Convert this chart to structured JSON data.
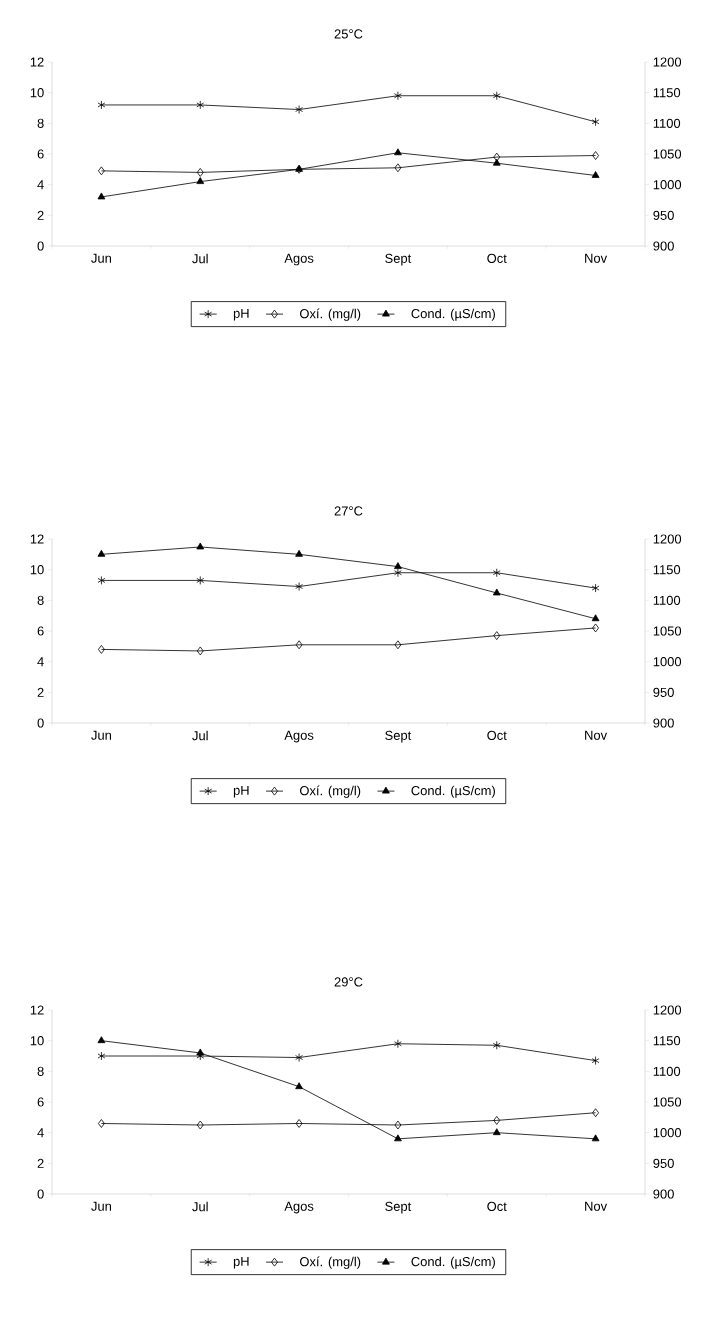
{
  "chart_data": [
    {
      "type": "line",
      "title": "25°C",
      "categories": [
        "Jun",
        "Jul",
        "Agos",
        "Sept",
        "Oct",
        "Nov"
      ],
      "ylim": [
        0,
        12
      ],
      "yticks": [
        0,
        2,
        4,
        6,
        8,
        10,
        12
      ],
      "y2lim": [
        900,
        1200
      ],
      "y2ticks": [
        900,
        950,
        1000,
        1050,
        1100,
        1150,
        1200
      ],
      "grid": false,
      "legend": "bottom",
      "series": [
        {
          "name": "pH",
          "color": "#000000",
          "marker": "cross",
          "values": [
            9.2,
            9.2,
            8.9,
            9.8,
            9.8,
            8.1
          ]
        },
        {
          "name": "Oxí. (mg/l)",
          "color": "#000000",
          "marker": "diamond",
          "values": [
            4.9,
            4.8,
            5.0,
            5.1,
            5.8,
            5.9
          ]
        },
        {
          "name": "Cond. (µS/cm)",
          "color": "#000000",
          "marker": "triangle",
          "axis": "y2",
          "values": [
            980,
            1005,
            1025,
            1052,
            1035,
            1015
          ]
        }
      ]
    },
    {
      "type": "line",
      "title": "27°C",
      "categories": [
        "Jun",
        "Jul",
        "Agos",
        "Sept",
        "Oct",
        "Nov"
      ],
      "ylim": [
        0,
        12
      ],
      "yticks": [
        0,
        2,
        4,
        6,
        8,
        10,
        12
      ],
      "y2lim": [
        900,
        1200
      ],
      "y2ticks": [
        900,
        950,
        1000,
        1050,
        1100,
        1150,
        1200
      ],
      "grid": false,
      "legend": "bottom",
      "series": [
        {
          "name": "pH",
          "color": "#000000",
          "marker": "cross",
          "values": [
            9.3,
            9.3,
            8.9,
            9.8,
            9.8,
            8.8
          ]
        },
        {
          "name": "Oxí. (mg/l)",
          "color": "#000000",
          "marker": "diamond",
          "values": [
            4.8,
            4.7,
            5.1,
            5.1,
            5.7,
            6.2
          ]
        },
        {
          "name": "Cond. (µS/cm)",
          "color": "#000000",
          "marker": "triangle",
          "axis": "y2",
          "values": [
            1175,
            1187,
            1175,
            1155,
            1112,
            1070
          ]
        }
      ]
    },
    {
      "type": "line",
      "title": "29°C",
      "categories": [
        "Jun",
        "Jul",
        "Agos",
        "Sept",
        "Oct",
        "Nov"
      ],
      "ylim": [
        0,
        12
      ],
      "yticks": [
        0,
        2,
        4,
        6,
        8,
        10,
        12
      ],
      "y2lim": [
        900,
        1200
      ],
      "y2ticks": [
        900,
        950,
        1000,
        1050,
        1100,
        1150,
        1200
      ],
      "grid": false,
      "legend": "bottom",
      "series": [
        {
          "name": "pH",
          "color": "#000000",
          "marker": "cross",
          "values": [
            9.0,
            9.0,
            8.9,
            9.8,
            9.7,
            8.7
          ]
        },
        {
          "name": "Oxí. (mg/l)",
          "color": "#000000",
          "marker": "diamond",
          "values": [
            4.6,
            4.5,
            4.6,
            4.5,
            4.8,
            5.3
          ]
        },
        {
          "name": "Cond. (µS/cm)",
          "color": "#000000",
          "marker": "triangle",
          "axis": "y2",
          "values": [
            1150,
            1130,
            1075,
            990,
            1000,
            990
          ]
        }
      ]
    }
  ]
}
